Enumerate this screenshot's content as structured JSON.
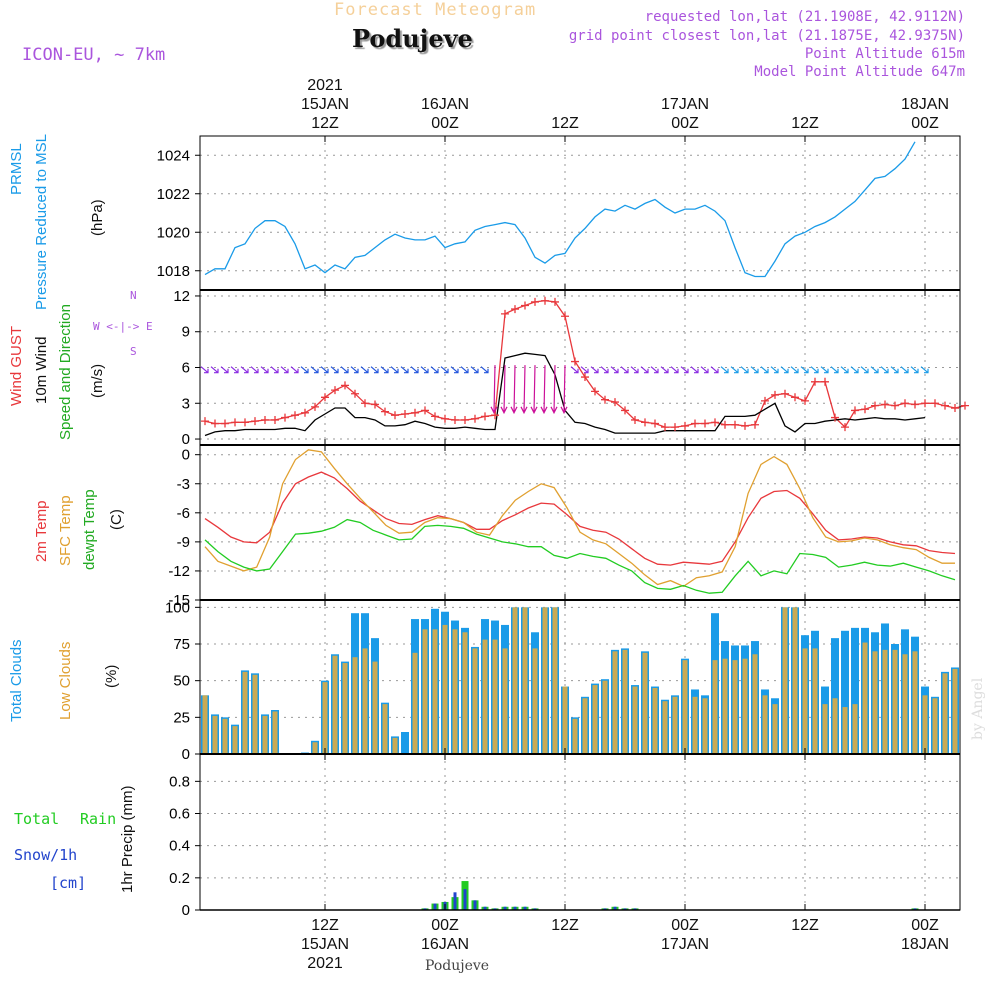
{
  "header": {
    "left_title": "Forecast Meteogram",
    "model": "ICON-EU, ~ 7km",
    "location": "Podujeve",
    "requested": "requested lon,lat (21.1908E, 42.9112N)",
    "gridpoint": "grid point closest lon,lat (21.1875E, 42.9375N)",
    "point_alt": "Point Altitude 615m",
    "model_alt": "Model Point Altitude 647m",
    "footer": "Podujeve",
    "watermark": "by Angel"
  },
  "time_axis": {
    "top_labels": [
      {
        "slot": 12,
        "lines": [
          "2021",
          "15JAN",
          "12Z"
        ]
      },
      {
        "slot": 24,
        "lines": [
          "16JAN",
          "00Z"
        ]
      },
      {
        "slot": 36,
        "lines": [
          "12Z"
        ]
      },
      {
        "slot": 48,
        "lines": [
          "17JAN",
          "00Z"
        ]
      },
      {
        "slot": 60,
        "lines": [
          "12Z"
        ]
      },
      {
        "slot": 72,
        "lines": [
          "18JAN",
          "00Z"
        ]
      }
    ],
    "bottom_labels": [
      {
        "slot": 12,
        "lines": [
          "12Z",
          "15JAN",
          "2021"
        ]
      },
      {
        "slot": 24,
        "lines": [
          "00Z",
          "16JAN"
        ]
      },
      {
        "slot": 36,
        "lines": [
          "12Z"
        ]
      },
      {
        "slot": 48,
        "lines": [
          "00Z",
          "17JAN"
        ]
      },
      {
        "slot": 60,
        "lines": [
          "12Z"
        ]
      },
      {
        "slot": 72,
        "lines": [
          "00Z",
          "18JAN"
        ]
      }
    ]
  },
  "panel_labels": {
    "pressure": {
      "l1": "PRMSL",
      "l2": "Pressure Reduced to MSL",
      "unit": "(hPa)"
    },
    "wind": {
      "l1": "Wind GUST",
      "l2": "10m Wind",
      "l3": "Speed and Direction",
      "unit": "(m/s)",
      "compass": "W <-|-> E",
      "compass_n": "N",
      "compass_s": "S"
    },
    "temp": {
      "l1": "2m Temp",
      "l2": "SFC Temp",
      "l3": "dewpt Temp",
      "unit": "(C)"
    },
    "clouds": {
      "l1": "Total Clouds",
      "l2": "Low Clouds",
      "unit": "(%)"
    },
    "precip": {
      "total": "Total",
      "rain": "Rain",
      "snow": "Snow/1h",
      "cm": "[cm]",
      "axis": "1hr Precip (mm)"
    }
  },
  "colors": {
    "pressure": "#1a9be8",
    "gust": "#e8383c",
    "wind": "#000000",
    "t2m": "#e8383c",
    "sfc": "#e0a030",
    "dew": "#22cc22",
    "total_clouds": "#1a9be8",
    "low_clouds": "#c8aa55",
    "rain": "#22cc22",
    "snow": "#2244cc",
    "label_purple": "#aa55dd",
    "title_orange": "#f5d09a"
  },
  "chart_data": [
    {
      "type": "line",
      "name": "pressure",
      "ylim": [
        1017,
        1025
      ],
      "yticks": [
        1018,
        1020,
        1022,
        1024
      ],
      "series": [
        {
          "name": "PRMSL",
          "values": [
            1017.8,
            1018.1,
            1018.1,
            1019.2,
            1019.4,
            1020.2,
            1020.6,
            1020.6,
            1020.3,
            1019.4,
            1018.1,
            1018.3,
            1017.9,
            1018.3,
            1018.1,
            1018.7,
            1018.8,
            1019.2,
            1019.6,
            1019.9,
            1019.7,
            1019.6,
            1019.6,
            1019.8,
            1019.2,
            1019.4,
            1019.5,
            1020.1,
            1020.3,
            1020.4,
            1020.5,
            1020.4,
            1019.7,
            1018.7,
            1018.4,
            1018.8,
            1018.9,
            1019.7,
            1020.2,
            1020.8,
            1021.2,
            1021.1,
            1021.4,
            1021.2,
            1021.5,
            1021.7,
            1021.3,
            1021.0,
            1021.2,
            1021.2,
            1021.4,
            1021.1,
            1020.6,
            1019.2,
            1017.9,
            1017.7,
            1017.7,
            1018.5,
            1019.4,
            1019.8,
            1020.0,
            1020.3,
            1020.5,
            1020.8,
            1021.2,
            1021.6,
            1022.2,
            1022.8,
            1022.9,
            1023.3,
            1023.8,
            1024.7
          ]
        }
      ]
    },
    {
      "type": "line",
      "name": "wind",
      "ylim": [
        -0.5,
        12.5
      ],
      "yticks": [
        0,
        3,
        6,
        9,
        12
      ],
      "series": [
        {
          "name": "Wind GUST",
          "values": [
            1.5,
            1.3,
            1.3,
            1.4,
            1.4,
            1.5,
            1.6,
            1.6,
            1.8,
            2.0,
            2.2,
            2.7,
            3.5,
            4.1,
            4.5,
            3.8,
            3.0,
            2.9,
            2.3,
            2.0,
            2.1,
            2.2,
            2.4,
            1.9,
            1.7,
            1.6,
            1.6,
            1.7,
            1.9,
            2.0,
            10.5,
            10.9,
            11.2,
            11.5,
            11.6,
            11.5,
            10.3,
            6.5,
            5.2,
            4.0,
            3.3,
            3.1,
            2.4,
            1.6,
            1.4,
            1.3,
            1.0,
            1.0,
            1.1,
            1.3,
            1.3,
            1.4,
            1.2,
            1.2,
            1.1,
            1.2,
            3.2,
            3.7,
            3.8,
            3.5,
            3.2,
            4.8,
            4.8,
            1.8,
            1.0,
            2.4,
            2.5,
            2.8,
            2.9,
            2.8,
            3.0,
            2.9,
            3.0,
            3.0,
            2.8,
            2.6,
            2.8
          ]
        },
        {
          "name": "10m Wind",
          "values": [
            0.3,
            0.6,
            0.7,
            0.7,
            0.8,
            0.8,
            0.8,
            0.8,
            0.9,
            0.9,
            0.7,
            1.6,
            2.1,
            2.6,
            2.6,
            1.8,
            1.8,
            1.6,
            1.1,
            1.1,
            1.2,
            1.5,
            1.3,
            1.0,
            0.9,
            0.9,
            1.0,
            0.9,
            0.8,
            0.8,
            6.8,
            7.0,
            7.2,
            7.1,
            7.0,
            5.4,
            2.4,
            1.4,
            1.3,
            1.0,
            0.8,
            0.5,
            0.5,
            0.5,
            0.5,
            0.5,
            0.7,
            0.7,
            0.7,
            0.7,
            0.7,
            0.7,
            1.9,
            1.9,
            1.9,
            2.0,
            2.5,
            3.0,
            1.1,
            0.6,
            1.3,
            1.3,
            1.5,
            1.6,
            1.7,
            1.6,
            1.7,
            1.8,
            1.7,
            1.7,
            1.6,
            1.7,
            1.8
          ]
        }
      ]
    },
    {
      "type": "line",
      "name": "temperature",
      "ylim": [
        -15,
        1
      ],
      "yticks": [
        0,
        -3,
        -6,
        -9,
        -12,
        -15
      ],
      "series": [
        {
          "name": "2m Temp",
          "values": [
            -6.6,
            -7.5,
            -8.5,
            -9.0,
            -9.1,
            -8.0,
            -5.0,
            -3.0,
            -2.3,
            -1.8,
            -2.4,
            -3.5,
            -4.8,
            -5.7,
            -6.6,
            -7.1,
            -7.2,
            -6.7,
            -6.3,
            -6.6,
            -7.0,
            -7.7,
            -7.7,
            -6.8,
            -6.2,
            -5.5,
            -5.0,
            -5.1,
            -6.2,
            -7.4,
            -7.8,
            -8.0,
            -8.7,
            -9.7,
            -10.7,
            -11.3,
            -11.4,
            -11.1,
            -11.2,
            -11.3,
            -11.0,
            -9.0,
            -6.5,
            -4.5,
            -3.8,
            -3.7,
            -4.5,
            -6.1,
            -7.8,
            -8.8,
            -8.7,
            -8.5,
            -8.6,
            -9.0,
            -9.3,
            -9.4,
            -9.9,
            -10.1,
            -10.2
          ]
        },
        {
          "name": "SFC Temp",
          "values": [
            -9.5,
            -11.0,
            -11.5,
            -12.0,
            -11.6,
            -8.5,
            -3.0,
            -0.5,
            0.5,
            0.3,
            -1.4,
            -3.0,
            -4.5,
            -5.9,
            -7.3,
            -8.1,
            -8.0,
            -7.0,
            -6.5,
            -6.6,
            -7.0,
            -8.0,
            -8.3,
            -6.3,
            -4.7,
            -3.8,
            -3.0,
            -3.4,
            -5.5,
            -8.0,
            -8.8,
            -9.2,
            -10.2,
            -11.2,
            -12.4,
            -13.4,
            -13.0,
            -13.6,
            -12.7,
            -12.5,
            -12.1,
            -9.5,
            -4.0,
            -1.0,
            -0.2,
            -1.0,
            -3.5,
            -6.5,
            -8.5,
            -9.0,
            -8.9,
            -8.6,
            -8.8,
            -9.3,
            -9.6,
            -9.8,
            -10.6,
            -11.2,
            -11.2
          ]
        },
        {
          "name": "dewpt Temp",
          "values": [
            -8.8,
            -10.0,
            -11.0,
            -11.6,
            -12.0,
            -11.8,
            -10.0,
            -8.2,
            -8.1,
            -7.9,
            -7.5,
            -6.7,
            -7.0,
            -7.8,
            -8.3,
            -8.8,
            -8.7,
            -7.4,
            -7.3,
            -7.4,
            -7.6,
            -8.2,
            -8.6,
            -9.0,
            -9.2,
            -9.5,
            -9.5,
            -10.4,
            -10.7,
            -10.2,
            -10.5,
            -10.7,
            -11.4,
            -12.0,
            -13.2,
            -13.8,
            -13.9,
            -13.5,
            -14.0,
            -14.3,
            -14.2,
            -12.5,
            -11.0,
            -12.5,
            -12.0,
            -12.3,
            -10.2,
            -10.3,
            -10.6,
            -11.6,
            -11.4,
            -11.1,
            -11.4,
            -11.5,
            -11.2,
            -11.6,
            -12.0,
            -12.5,
            -12.9
          ]
        }
      ]
    },
    {
      "type": "bar",
      "name": "clouds",
      "ylim": [
        0,
        105
      ],
      "yticks": [
        0,
        25,
        50,
        75,
        100
      ],
      "series": [
        {
          "name": "Total Clouds",
          "values": [
            40,
            27,
            25,
            20,
            57,
            55,
            27,
            30,
            0,
            0,
            1,
            9,
            50,
            68,
            63,
            96,
            96,
            79,
            35,
            12,
            15,
            92,
            92,
            99,
            97,
            91,
            86,
            73,
            92,
            91,
            88,
            100,
            100,
            83,
            100,
            100,
            46,
            25,
            39,
            48,
            51,
            71,
            72,
            47,
            70,
            46,
            37,
            40,
            65,
            44,
            40,
            96,
            77,
            74,
            74,
            77,
            44,
            38,
            100,
            100,
            81,
            84,
            46,
            79,
            84,
            86,
            86,
            83,
            89,
            75,
            85,
            80,
            46,
            39,
            56,
            59
          ]
        },
        {
          "name": "Low Clouds",
          "values": [
            40,
            26,
            24,
            19,
            56,
            54,
            26,
            29,
            0,
            0,
            0,
            8,
            49,
            67,
            62,
            66,
            72,
            63,
            34,
            11,
            0,
            69,
            85,
            85,
            88,
            85,
            83,
            72,
            78,
            78,
            72,
            100,
            100,
            72,
            100,
            100,
            46,
            24,
            38,
            47,
            50,
            70,
            71,
            46,
            69,
            45,
            36,
            39,
            64,
            39,
            38,
            64,
            65,
            64,
            65,
            68,
            40,
            34,
            100,
            100,
            72,
            72,
            34,
            38,
            32,
            34,
            76,
            70,
            71,
            71,
            68,
            70,
            40,
            38,
            55,
            58
          ]
        }
      ]
    },
    {
      "type": "bar",
      "name": "precipitation",
      "ylim": [
        0,
        0.97
      ],
      "yticks": [
        0,
        0.2,
        0.4,
        0.6,
        0.8
      ],
      "series": [
        {
          "name": "Total",
          "values": [
            0,
            0,
            0,
            0,
            0,
            0,
            0,
            0,
            0,
            0,
            0,
            0,
            0,
            0,
            0,
            0,
            0,
            0,
            0,
            0,
            0,
            0,
            0.01,
            0.04,
            0.05,
            0.08,
            0.18,
            0.06,
            0.02,
            0.01,
            0.02,
            0.02,
            0.02,
            0.01,
            0,
            0,
            0,
            0,
            0,
            0,
            0.01,
            0.02,
            0.01,
            0.01,
            0,
            0,
            0,
            0,
            0,
            0,
            0,
            0,
            0,
            0,
            0,
            0,
            0,
            0,
            0,
            0,
            0,
            0,
            0,
            0,
            0,
            0,
            0,
            0,
            0,
            0,
            0,
            0.01,
            0,
            0,
            0,
            0
          ]
        },
        {
          "name": "Snow/1h",
          "values": [
            0,
            0,
            0,
            0,
            0,
            0,
            0,
            0,
            0,
            0,
            0,
            0,
            0,
            0,
            0,
            0,
            0,
            0,
            0,
            0,
            0,
            0,
            0.01,
            0.04,
            0.05,
            0.11,
            0.13,
            0.06,
            0.02,
            0.01,
            0.02,
            0.02,
            0.02,
            0.01,
            0,
            0,
            0,
            0,
            0,
            0,
            0.01,
            0.02,
            0.01,
            0.01,
            0,
            0,
            0,
            0,
            0,
            0,
            0,
            0,
            0,
            0,
            0,
            0,
            0,
            0,
            0,
            0,
            0,
            0,
            0,
            0,
            0,
            0,
            0,
            0,
            0,
            0,
            0,
            0.01,
            0,
            0,
            0,
            0
          ]
        }
      ]
    }
  ]
}
